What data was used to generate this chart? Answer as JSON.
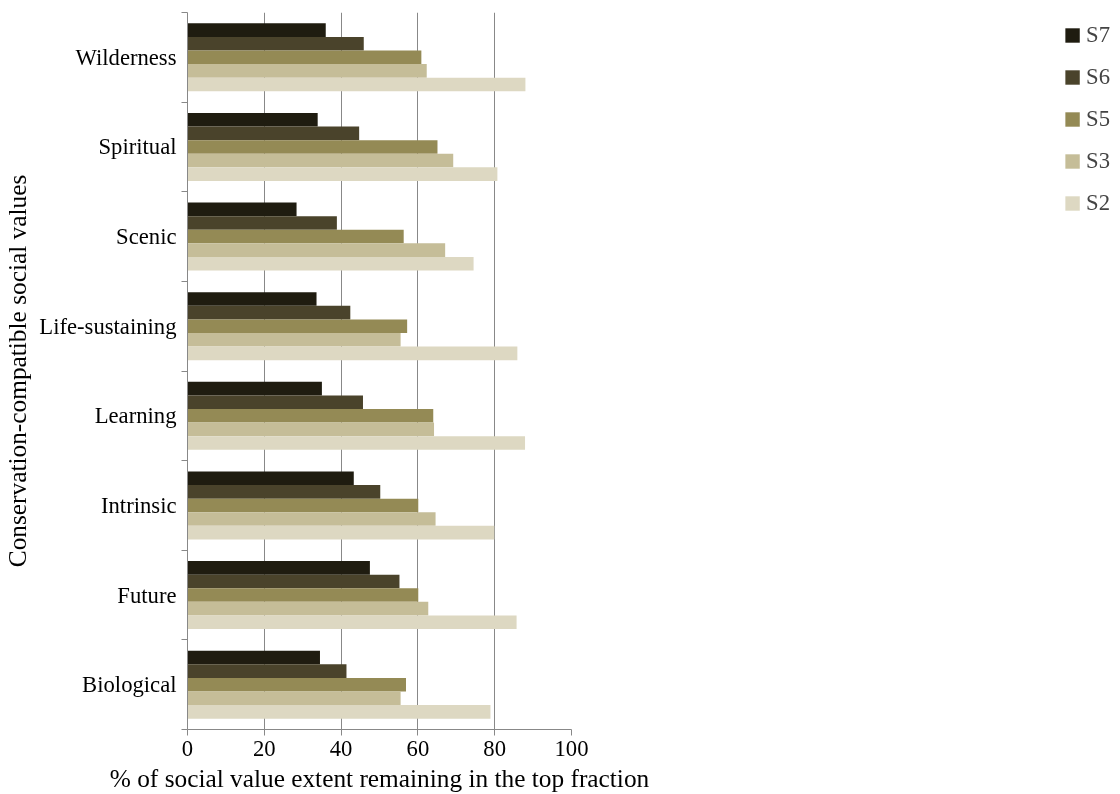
{
  "chart_data": {
    "type": "bar",
    "orientation": "horizontal",
    "xlabel": "% of social value extent remaining in the top fraction",
    "ylabel": "Conservation-compatible social values",
    "categories": [
      "Wilderness",
      "Spiritual",
      "Scenic",
      "Life-sustaining",
      "Learning",
      "Intrinsic",
      "Future",
      "Biological"
    ],
    "series": [
      {
        "name": "S7",
        "color": "#1f1c10",
        "values": [
          36.0,
          33.9,
          28.4,
          33.6,
          35.0,
          43.3,
          47.5,
          34.5
        ]
      },
      {
        "name": "S6",
        "color": "#4a432b",
        "values": [
          45.9,
          44.7,
          38.9,
          42.4,
          45.7,
          50.2,
          55.2,
          41.4
        ]
      },
      {
        "name": "S5",
        "color": "#948a55",
        "values": [
          60.9,
          65.1,
          56.3,
          57.2,
          64.0,
          60.1,
          60.1,
          56.9
        ]
      },
      {
        "name": "S3",
        "color": "#c5bd98",
        "values": [
          62.3,
          69.2,
          67.1,
          55.5,
          64.2,
          64.6,
          62.7,
          55.5
        ]
      },
      {
        "name": "S2",
        "color": "#ddd8c2",
        "values": [
          88.0,
          80.7,
          74.5,
          85.9,
          87.9,
          79.9,
          85.7,
          78.9
        ]
      }
    ],
    "xlim": [
      0,
      100
    ],
    "xticks": [
      0,
      20,
      40,
      60,
      80,
      100
    ],
    "grid": "x",
    "legend": "right"
  }
}
